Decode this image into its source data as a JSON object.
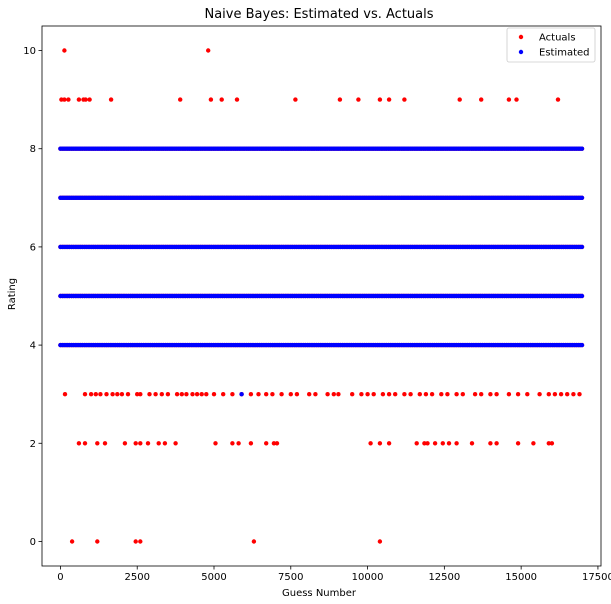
{
  "chart_data": {
    "type": "scatter",
    "title": "Naive Bayes: Estimated vs. Actuals",
    "xlabel": "Guess Number",
    "ylabel": "Rating",
    "xlim": [
      -600,
      17600
    ],
    "ylim": [
      -0.5,
      10.5
    ],
    "xticks": [
      0,
      2500,
      5000,
      7500,
      10000,
      12500,
      15000,
      17500
    ],
    "xtick_labels": [
      "0",
      "2500",
      "5000",
      "7500",
      "10000",
      "12500",
      "15000",
      "17500"
    ],
    "yticks": [
      0,
      2,
      4,
      6,
      8,
      10
    ],
    "ytick_labels": [
      "0",
      "2",
      "4",
      "6",
      "8",
      "10"
    ],
    "grid": false,
    "legend_position": "top-right",
    "n_points_per_series": 16980,
    "series": [
      {
        "name": "Actuals",
        "color": "#ff0000",
        "dense_levels": [
          4,
          5,
          6,
          7,
          8
        ],
        "sparse_points": [
          {
            "x": 130,
            "y": 10
          },
          {
            "x": 4810,
            "y": 10
          },
          {
            "x": 30,
            "y": 9
          },
          {
            "x": 130,
            "y": 9
          },
          {
            "x": 260,
            "y": 9
          },
          {
            "x": 600,
            "y": 9
          },
          {
            "x": 750,
            "y": 9
          },
          {
            "x": 820,
            "y": 9
          },
          {
            "x": 950,
            "y": 9
          },
          {
            "x": 1650,
            "y": 9
          },
          {
            "x": 3900,
            "y": 9
          },
          {
            "x": 4900,
            "y": 9
          },
          {
            "x": 5250,
            "y": 9
          },
          {
            "x": 5750,
            "y": 9
          },
          {
            "x": 7650,
            "y": 9
          },
          {
            "x": 9100,
            "y": 9
          },
          {
            "x": 9700,
            "y": 9
          },
          {
            "x": 10400,
            "y": 9
          },
          {
            "x": 10700,
            "y": 9
          },
          {
            "x": 11200,
            "y": 9
          },
          {
            "x": 13000,
            "y": 9
          },
          {
            "x": 13700,
            "y": 9
          },
          {
            "x": 14600,
            "y": 9
          },
          {
            "x": 14850,
            "y": 9
          },
          {
            "x": 16200,
            "y": 9
          },
          {
            "x": 150,
            "y": 3
          },
          {
            "x": 800,
            "y": 3
          },
          {
            "x": 1000,
            "y": 3
          },
          {
            "x": 1150,
            "y": 3
          },
          {
            "x": 1300,
            "y": 3
          },
          {
            "x": 1500,
            "y": 3
          },
          {
            "x": 1700,
            "y": 3
          },
          {
            "x": 1850,
            "y": 3
          },
          {
            "x": 2000,
            "y": 3
          },
          {
            "x": 2200,
            "y": 3
          },
          {
            "x": 2500,
            "y": 3
          },
          {
            "x": 2600,
            "y": 3
          },
          {
            "x": 2900,
            "y": 3
          },
          {
            "x": 3100,
            "y": 3
          },
          {
            "x": 3300,
            "y": 3
          },
          {
            "x": 3500,
            "y": 3
          },
          {
            "x": 3800,
            "y": 3
          },
          {
            "x": 3950,
            "y": 3
          },
          {
            "x": 4100,
            "y": 3
          },
          {
            "x": 4300,
            "y": 3
          },
          {
            "x": 4450,
            "y": 3
          },
          {
            "x": 4600,
            "y": 3
          },
          {
            "x": 4750,
            "y": 3
          },
          {
            "x": 5000,
            "y": 3
          },
          {
            "x": 5300,
            "y": 3
          },
          {
            "x": 5600,
            "y": 3
          },
          {
            "x": 5900,
            "y": 3
          },
          {
            "x": 6200,
            "y": 3
          },
          {
            "x": 6450,
            "y": 3
          },
          {
            "x": 6700,
            "y": 3
          },
          {
            "x": 6900,
            "y": 3
          },
          {
            "x": 7200,
            "y": 3
          },
          {
            "x": 7500,
            "y": 3
          },
          {
            "x": 7700,
            "y": 3
          },
          {
            "x": 8100,
            "y": 3
          },
          {
            "x": 8300,
            "y": 3
          },
          {
            "x": 8700,
            "y": 3
          },
          {
            "x": 8900,
            "y": 3
          },
          {
            "x": 9050,
            "y": 3
          },
          {
            "x": 9500,
            "y": 3
          },
          {
            "x": 9800,
            "y": 3
          },
          {
            "x": 10000,
            "y": 3
          },
          {
            "x": 10200,
            "y": 3
          },
          {
            "x": 10500,
            "y": 3
          },
          {
            "x": 10700,
            "y": 3
          },
          {
            "x": 10900,
            "y": 3
          },
          {
            "x": 11200,
            "y": 3
          },
          {
            "x": 11400,
            "y": 3
          },
          {
            "x": 11700,
            "y": 3
          },
          {
            "x": 11900,
            "y": 3
          },
          {
            "x": 12100,
            "y": 3
          },
          {
            "x": 12400,
            "y": 3
          },
          {
            "x": 12600,
            "y": 3
          },
          {
            "x": 12900,
            "y": 3
          },
          {
            "x": 13100,
            "y": 3
          },
          {
            "x": 13500,
            "y": 3
          },
          {
            "x": 13700,
            "y": 3
          },
          {
            "x": 14000,
            "y": 3
          },
          {
            "x": 14200,
            "y": 3
          },
          {
            "x": 14600,
            "y": 3
          },
          {
            "x": 14900,
            "y": 3
          },
          {
            "x": 15200,
            "y": 3
          },
          {
            "x": 15600,
            "y": 3
          },
          {
            "x": 15900,
            "y": 3
          },
          {
            "x": 16100,
            "y": 3
          },
          {
            "x": 16300,
            "y": 3
          },
          {
            "x": 16500,
            "y": 3
          },
          {
            "x": 16700,
            "y": 3
          },
          {
            "x": 16900,
            "y": 3
          },
          {
            "x": 600,
            "y": 2
          },
          {
            "x": 800,
            "y": 2
          },
          {
            "x": 1200,
            "y": 2
          },
          {
            "x": 1450,
            "y": 2
          },
          {
            "x": 2100,
            "y": 2
          },
          {
            "x": 2450,
            "y": 2
          },
          {
            "x": 2600,
            "y": 2
          },
          {
            "x": 2850,
            "y": 2
          },
          {
            "x": 3200,
            "y": 2
          },
          {
            "x": 3400,
            "y": 2
          },
          {
            "x": 3750,
            "y": 2
          },
          {
            "x": 5050,
            "y": 2
          },
          {
            "x": 5600,
            "y": 2
          },
          {
            "x": 5800,
            "y": 2
          },
          {
            "x": 6200,
            "y": 2
          },
          {
            "x": 6700,
            "y": 2
          },
          {
            "x": 6950,
            "y": 2
          },
          {
            "x": 7050,
            "y": 2
          },
          {
            "x": 10100,
            "y": 2
          },
          {
            "x": 10400,
            "y": 2
          },
          {
            "x": 10700,
            "y": 2
          },
          {
            "x": 11600,
            "y": 2
          },
          {
            "x": 11850,
            "y": 2
          },
          {
            "x": 11950,
            "y": 2
          },
          {
            "x": 12200,
            "y": 2
          },
          {
            "x": 12450,
            "y": 2
          },
          {
            "x": 12650,
            "y": 2
          },
          {
            "x": 12900,
            "y": 2
          },
          {
            "x": 13400,
            "y": 2
          },
          {
            "x": 14000,
            "y": 2
          },
          {
            "x": 14200,
            "y": 2
          },
          {
            "x": 14900,
            "y": 2
          },
          {
            "x": 15400,
            "y": 2
          },
          {
            "x": 15900,
            "y": 2
          },
          {
            "x": 16000,
            "y": 2
          },
          {
            "x": 380,
            "y": 0
          },
          {
            "x": 1200,
            "y": 0
          },
          {
            "x": 2450,
            "y": 0
          },
          {
            "x": 2600,
            "y": 0
          },
          {
            "x": 6300,
            "y": 0
          },
          {
            "x": 10400,
            "y": 0
          }
        ]
      },
      {
        "name": "Estimated",
        "color": "#0000ff",
        "dense_levels": [
          4,
          5,
          6,
          7,
          8
        ],
        "sparse_points": [
          {
            "x": 5900,
            "y": 3
          }
        ]
      }
    ]
  }
}
